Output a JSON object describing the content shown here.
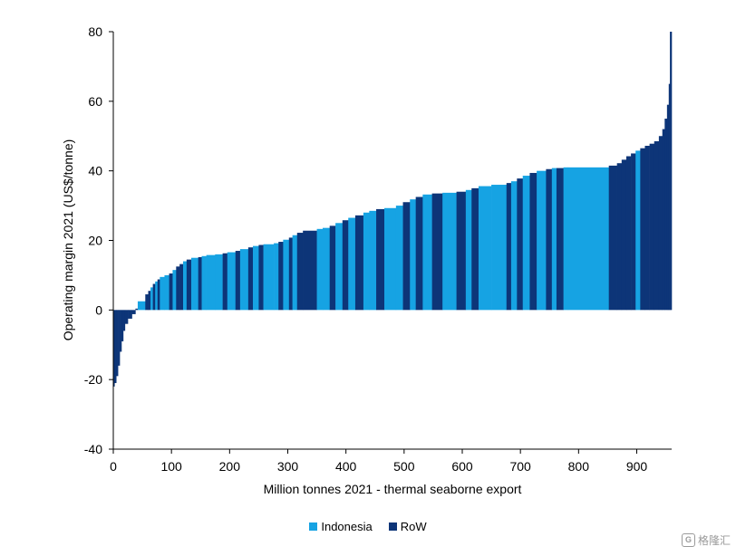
{
  "chart_data": {
    "type": "bar",
    "xlabel": "Million tonnes 2021 - thermal seaborne export",
    "ylabel": "Operating margin 2021 (US$/tonne)",
    "xlim": [
      0,
      960
    ],
    "ylim": [
      -40,
      80
    ],
    "x_ticks": [
      0,
      100,
      200,
      300,
      400,
      500,
      600,
      700,
      800,
      900
    ],
    "y_ticks": [
      -40,
      -20,
      0,
      20,
      40,
      60,
      80
    ],
    "grid": false,
    "legend_position": "bottom-center",
    "series": [
      {
        "name": "Indonesia",
        "color": "#16A3E3"
      },
      {
        "name": "RoW",
        "color": "#0D3578"
      }
    ],
    "bars": [
      {
        "x0": 0,
        "x1": 2,
        "y": -22,
        "series": "RoW"
      },
      {
        "x0": 2,
        "x1": 5,
        "y": -21,
        "series": "RoW"
      },
      {
        "x0": 5,
        "x1": 8,
        "y": -19,
        "series": "RoW"
      },
      {
        "x0": 8,
        "x1": 11,
        "y": -16,
        "series": "RoW"
      },
      {
        "x0": 11,
        "x1": 14,
        "y": -12,
        "series": "RoW"
      },
      {
        "x0": 14,
        "x1": 17,
        "y": -9,
        "series": "RoW"
      },
      {
        "x0": 17,
        "x1": 20,
        "y": -6,
        "series": "RoW"
      },
      {
        "x0": 20,
        "x1": 25,
        "y": -4,
        "series": "RoW"
      },
      {
        "x0": 25,
        "x1": 32,
        "y": -2.5,
        "series": "RoW"
      },
      {
        "x0": 32,
        "x1": 38,
        "y": -1.2,
        "series": "RoW"
      },
      {
        "x0": 38,
        "x1": 42,
        "y": 0.4,
        "series": "RoW"
      },
      {
        "x0": 42,
        "x1": 55,
        "y": 2.5,
        "series": "Indonesia"
      },
      {
        "x0": 55,
        "x1": 60,
        "y": 4.5,
        "series": "RoW"
      },
      {
        "x0": 60,
        "x1": 64,
        "y": 5.5,
        "series": "RoW"
      },
      {
        "x0": 64,
        "x1": 68,
        "y": 6.5,
        "series": "Indonesia"
      },
      {
        "x0": 68,
        "x1": 72,
        "y": 7.5,
        "series": "RoW"
      },
      {
        "x0": 72,
        "x1": 76,
        "y": 8.2,
        "series": "Indonesia"
      },
      {
        "x0": 76,
        "x1": 80,
        "y": 8.8,
        "series": "RoW"
      },
      {
        "x0": 80,
        "x1": 88,
        "y": 9.5,
        "series": "Indonesia"
      },
      {
        "x0": 88,
        "x1": 96,
        "y": 10,
        "series": "Indonesia"
      },
      {
        "x0": 96,
        "x1": 102,
        "y": 10.5,
        "series": "RoW"
      },
      {
        "x0": 102,
        "x1": 108,
        "y": 11.5,
        "series": "Indonesia"
      },
      {
        "x0": 108,
        "x1": 114,
        "y": 12.5,
        "series": "RoW"
      },
      {
        "x0": 114,
        "x1": 120,
        "y": 13.2,
        "series": "RoW"
      },
      {
        "x0": 120,
        "x1": 126,
        "y": 14,
        "series": "Indonesia"
      },
      {
        "x0": 126,
        "x1": 134,
        "y": 14.5,
        "series": "RoW"
      },
      {
        "x0": 134,
        "x1": 146,
        "y": 15,
        "series": "Indonesia"
      },
      {
        "x0": 146,
        "x1": 152,
        "y": 15.2,
        "series": "RoW"
      },
      {
        "x0": 152,
        "x1": 160,
        "y": 15.5,
        "series": "Indonesia"
      },
      {
        "x0": 160,
        "x1": 175,
        "y": 15.8,
        "series": "Indonesia"
      },
      {
        "x0": 175,
        "x1": 188,
        "y": 16,
        "series": "Indonesia"
      },
      {
        "x0": 188,
        "x1": 196,
        "y": 16.3,
        "series": "RoW"
      },
      {
        "x0": 196,
        "x1": 210,
        "y": 16.6,
        "series": "Indonesia"
      },
      {
        "x0": 210,
        "x1": 218,
        "y": 17,
        "series": "RoW"
      },
      {
        "x0": 218,
        "x1": 232,
        "y": 17.5,
        "series": "Indonesia"
      },
      {
        "x0": 232,
        "x1": 240,
        "y": 18,
        "series": "RoW"
      },
      {
        "x0": 240,
        "x1": 250,
        "y": 18.4,
        "series": "Indonesia"
      },
      {
        "x0": 250,
        "x1": 258,
        "y": 18.7,
        "series": "RoW"
      },
      {
        "x0": 258,
        "x1": 276,
        "y": 18.9,
        "series": "Indonesia"
      },
      {
        "x0": 276,
        "x1": 284,
        "y": 19.2,
        "series": "Indonesia"
      },
      {
        "x0": 284,
        "x1": 292,
        "y": 19.6,
        "series": "RoW"
      },
      {
        "x0": 292,
        "x1": 302,
        "y": 20.2,
        "series": "Indonesia"
      },
      {
        "x0": 302,
        "x1": 308,
        "y": 20.8,
        "series": "RoW"
      },
      {
        "x0": 308,
        "x1": 316,
        "y": 21.5,
        "series": "Indonesia"
      },
      {
        "x0": 316,
        "x1": 326,
        "y": 22.2,
        "series": "RoW"
      },
      {
        "x0": 326,
        "x1": 350,
        "y": 22.8,
        "series": "RoW"
      },
      {
        "x0": 350,
        "x1": 360,
        "y": 23.3,
        "series": "Indonesia"
      },
      {
        "x0": 360,
        "x1": 372,
        "y": 23.6,
        "series": "Indonesia"
      },
      {
        "x0": 372,
        "x1": 382,
        "y": 24.2,
        "series": "RoW"
      },
      {
        "x0": 382,
        "x1": 394,
        "y": 25,
        "series": "Indonesia"
      },
      {
        "x0": 394,
        "x1": 404,
        "y": 25.8,
        "series": "RoW"
      },
      {
        "x0": 404,
        "x1": 416,
        "y": 26.5,
        "series": "Indonesia"
      },
      {
        "x0": 416,
        "x1": 430,
        "y": 27.2,
        "series": "RoW"
      },
      {
        "x0": 430,
        "x1": 440,
        "y": 28,
        "series": "Indonesia"
      },
      {
        "x0": 440,
        "x1": 452,
        "y": 28.5,
        "series": "Indonesia"
      },
      {
        "x0": 452,
        "x1": 466,
        "y": 29,
        "series": "RoW"
      },
      {
        "x0": 466,
        "x1": 486,
        "y": 29.3,
        "series": "Indonesia"
      },
      {
        "x0": 486,
        "x1": 498,
        "y": 30,
        "series": "Indonesia"
      },
      {
        "x0": 498,
        "x1": 510,
        "y": 31,
        "series": "RoW"
      },
      {
        "x0": 510,
        "x1": 520,
        "y": 31.8,
        "series": "Indonesia"
      },
      {
        "x0": 520,
        "x1": 532,
        "y": 32.5,
        "series": "RoW"
      },
      {
        "x0": 532,
        "x1": 548,
        "y": 33.2,
        "series": "Indonesia"
      },
      {
        "x0": 548,
        "x1": 566,
        "y": 33.5,
        "series": "RoW"
      },
      {
        "x0": 566,
        "x1": 590,
        "y": 33.7,
        "series": "Indonesia"
      },
      {
        "x0": 590,
        "x1": 606,
        "y": 34,
        "series": "RoW"
      },
      {
        "x0": 606,
        "x1": 616,
        "y": 34.5,
        "series": "Indonesia"
      },
      {
        "x0": 616,
        "x1": 628,
        "y": 35,
        "series": "RoW"
      },
      {
        "x0": 628,
        "x1": 650,
        "y": 35.6,
        "series": "Indonesia"
      },
      {
        "x0": 650,
        "x1": 676,
        "y": 36,
        "series": "Indonesia"
      },
      {
        "x0": 676,
        "x1": 684,
        "y": 36.5,
        "series": "RoW"
      },
      {
        "x0": 684,
        "x1": 694,
        "y": 37,
        "series": "Indonesia"
      },
      {
        "x0": 694,
        "x1": 704,
        "y": 37.8,
        "series": "RoW"
      },
      {
        "x0": 704,
        "x1": 716,
        "y": 38.6,
        "series": "Indonesia"
      },
      {
        "x0": 716,
        "x1": 728,
        "y": 39.4,
        "series": "RoW"
      },
      {
        "x0": 728,
        "x1": 744,
        "y": 40,
        "series": "Indonesia"
      },
      {
        "x0": 744,
        "x1": 754,
        "y": 40.5,
        "series": "RoW"
      },
      {
        "x0": 754,
        "x1": 762,
        "y": 40.8,
        "series": "Indonesia"
      },
      {
        "x0": 762,
        "x1": 774,
        "y": 40.8,
        "series": "RoW"
      },
      {
        "x0": 774,
        "x1": 782,
        "y": 41,
        "series": "Indonesia"
      },
      {
        "x0": 782,
        "x1": 852,
        "y": 41,
        "series": "Indonesia"
      },
      {
        "x0": 852,
        "x1": 866,
        "y": 41.5,
        "series": "RoW"
      },
      {
        "x0": 866,
        "x1": 874,
        "y": 42.2,
        "series": "RoW"
      },
      {
        "x0": 874,
        "x1": 882,
        "y": 43.2,
        "series": "RoW"
      },
      {
        "x0": 882,
        "x1": 890,
        "y": 44.2,
        "series": "RoW"
      },
      {
        "x0": 890,
        "x1": 898,
        "y": 45,
        "series": "RoW"
      },
      {
        "x0": 898,
        "x1": 906,
        "y": 45.8,
        "series": "Indonesia"
      },
      {
        "x0": 906,
        "x1": 914,
        "y": 46.5,
        "series": "RoW"
      },
      {
        "x0": 914,
        "x1": 922,
        "y": 47.2,
        "series": "RoW"
      },
      {
        "x0": 922,
        "x1": 930,
        "y": 47.8,
        "series": "RoW"
      },
      {
        "x0": 930,
        "x1": 938,
        "y": 48.5,
        "series": "RoW"
      },
      {
        "x0": 938,
        "x1": 944,
        "y": 50,
        "series": "RoW"
      },
      {
        "x0": 944,
        "x1": 948,
        "y": 52,
        "series": "RoW"
      },
      {
        "x0": 948,
        "x1": 952,
        "y": 55,
        "series": "RoW"
      },
      {
        "x0": 952,
        "x1": 955,
        "y": 59,
        "series": "RoW"
      },
      {
        "x0": 955,
        "x1": 957,
        "y": 65,
        "series": "RoW"
      },
      {
        "x0": 957,
        "x1": 960,
        "y": 80,
        "series": "RoW"
      }
    ]
  },
  "watermark": {
    "text": "格隆汇",
    "logo_glyph": "G",
    "color": "#9a9a9a"
  }
}
